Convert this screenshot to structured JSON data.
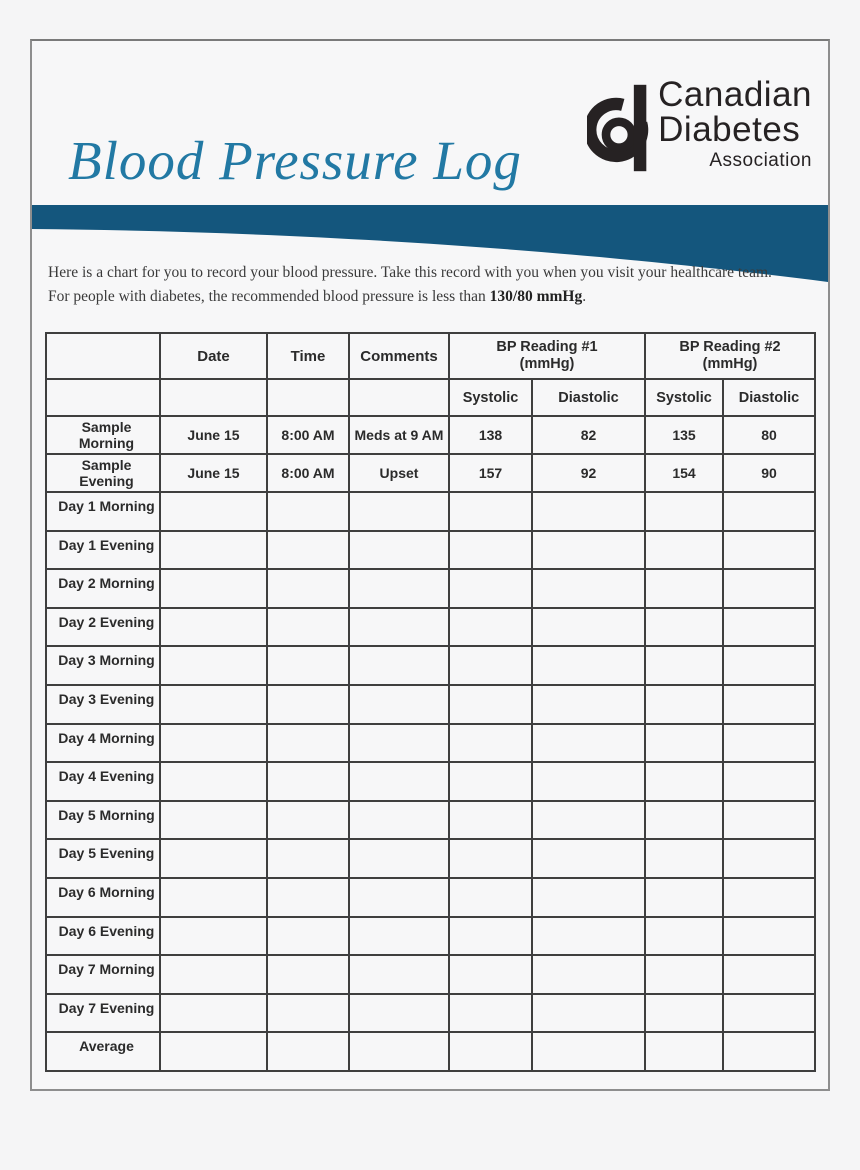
{
  "page": {
    "title": "Blood Pressure Log"
  },
  "logo": {
    "line1": "Canadian",
    "line2": "Diabetes",
    "line3": "Association",
    "mark": "cda-d-in-circle-icon"
  },
  "colors": {
    "band": "#14567d",
    "title_teal": "#2279a4",
    "logo_ink": "#262223",
    "table_line": "#3f3f3f"
  },
  "intro": {
    "line1": "Here is a chart for you to record your blood pressure. Take this record with you when you visit your healthcare team.",
    "line2_prefix": "For people with diabetes, the recommended blood pressure is less than ",
    "line2_bold": "130/80 mmHg",
    "line2_suffix": "."
  },
  "table": {
    "header_row1": {
      "corner": "",
      "date": "Date",
      "time": "Time",
      "comments": "Comments",
      "bp1_name": "BP Reading #1",
      "bp1_unit": "(mmHg)",
      "bp2_name": "BP Reading #2",
      "bp2_unit": "(mmHg)"
    },
    "header_row2": {
      "systolic1": "Systolic",
      "diastolic1": "Diastolic",
      "systolic2": "Systolic",
      "diastolic2": "Diastolic"
    },
    "rows": [
      {
        "label": "Sample Morning",
        "date": "June 15",
        "time": "8:00 AM",
        "comments": "Meds at 9 AM",
        "sys1": "138",
        "dia1": "82",
        "sys2": "135",
        "dia2": "80"
      },
      {
        "label": "Sample Evening",
        "date": "June 15",
        "time": "8:00 AM",
        "comments": "Upset",
        "sys1": "157",
        "dia1": "92",
        "sys2": "154",
        "dia2": "90"
      },
      {
        "label": "Day 1 Morning"
      },
      {
        "label": "Day 1 Evening"
      },
      {
        "label": "Day 2 Morning"
      },
      {
        "label": "Day 2 Evening"
      },
      {
        "label": "Day 3 Morning"
      },
      {
        "label": "Day 3 Evening"
      },
      {
        "label": "Day 4 Morning"
      },
      {
        "label": "Day 4 Evening"
      },
      {
        "label": "Day 5 Morning"
      },
      {
        "label": "Day 5 Evening"
      },
      {
        "label": "Day 6 Morning"
      },
      {
        "label": "Day 6 Evening"
      },
      {
        "label": "Day 7 Morning"
      },
      {
        "label": "Day 7 Evening"
      },
      {
        "label": "Average"
      }
    ]
  }
}
